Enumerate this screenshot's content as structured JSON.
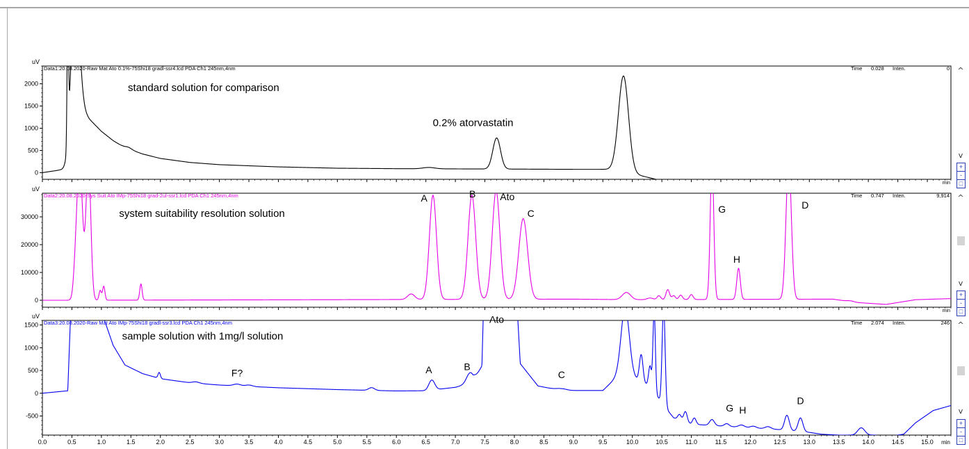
{
  "chart_data": [
    {
      "type": "line",
      "panel": 1,
      "header": "Data1:20.08.2020-Raw Mat Ato 0.1%-75Shi18 gradl-ssr4.lcd PDA Ch1 245nm,4nm",
      "ylabel": "uV",
      "color": "#000000",
      "ylim": [
        -150,
        2400
      ],
      "xlim": [
        0,
        15.4
      ],
      "yticks": [
        0,
        500,
        1000,
        1500,
        2000
      ],
      "ytick_labels": [
        "0",
        "500",
        "1000",
        "1500",
        "2000"
      ],
      "info": {
        "time_label": "Time",
        "time_value": "0.028",
        "inten_label": "Inten.",
        "inten_value": "0"
      },
      "annotations": [
        {
          "text": "standard solution for comparison",
          "x": 1.45,
          "y": 1840
        },
        {
          "text": "0.2% atorvastatin",
          "x": 7.3,
          "y": 1050
        }
      ],
      "baseline": {
        "points": [
          [
            0,
            0
          ],
          [
            0.3,
            60
          ],
          [
            0.42,
            60
          ],
          [
            0.6,
            1550
          ],
          [
            0.8,
            1200
          ],
          [
            1.0,
            930
          ],
          [
            1.2,
            720
          ],
          [
            1.4,
            560
          ],
          [
            1.7,
            420
          ],
          [
            2.0,
            320
          ],
          [
            2.5,
            230
          ],
          [
            3.0,
            180
          ],
          [
            4.0,
            130
          ],
          [
            5.0,
            100
          ],
          [
            6.0,
            90
          ],
          [
            7.0,
            85
          ],
          [
            8.0,
            80
          ],
          [
            9.0,
            75
          ],
          [
            9.7,
            75
          ],
          [
            10.4,
            -150
          ]
        ]
      },
      "peaks": [
        {
          "x": 0.43,
          "h": 3000,
          "w": 0.012
        },
        {
          "x": 0.55,
          "h": 3000,
          "w": 0.07
        },
        {
          "x": 1.45,
          "h": 40,
          "w": 0.06
        },
        {
          "x": 6.55,
          "h": 30,
          "w": 0.1
        },
        {
          "x": 7.7,
          "h": 700,
          "w": 0.065
        },
        {
          "x": 9.85,
          "h": 2150,
          "w": 0.085
        }
      ]
    },
    {
      "type": "line",
      "panel": 2,
      "header": "Data2:20.08.2020-Sys Suit Ato IMp-75Shi18 grad-2ul-ssr1.lcd PDA Ch1 245nm,4nm",
      "ylabel": "uV",
      "color": "#e600e6",
      "ylim": [
        -2500,
        38500
      ],
      "xlim": [
        0,
        15.4
      ],
      "yticks": [
        0,
        10000,
        20000,
        30000
      ],
      "ytick_labels": [
        "0",
        "10000",
        "20000",
        "30000"
      ],
      "info": {
        "time_label": "Time",
        "time_value": "0.747",
        "inten_label": "Inten.",
        "inten_value": "9,914"
      },
      "annotations": [
        {
          "text": "system suitability resolution solution",
          "x": 1.3,
          "y": 30000
        },
        {
          "text": "A",
          "x": 6.47,
          "y": 35500
        },
        {
          "text": "B",
          "x": 7.29,
          "y": 37000
        },
        {
          "text": "Ato",
          "x": 7.88,
          "y": 36000
        },
        {
          "text": "C",
          "x": 8.28,
          "y": 30000
        },
        {
          "text": "G",
          "x": 11.52,
          "y": 31500
        },
        {
          "text": "H",
          "x": 11.77,
          "y": 13500
        },
        {
          "text": "D",
          "x": 12.93,
          "y": 33000
        }
      ],
      "baseline": {
        "points": [
          [
            0,
            0
          ],
          [
            0.45,
            0
          ],
          [
            9.0,
            400
          ],
          [
            10.0,
            200
          ],
          [
            13.4,
            400
          ],
          [
            13.8,
            -800
          ],
          [
            14.3,
            -1500
          ],
          [
            14.8,
            200
          ],
          [
            15.4,
            600
          ]
        ]
      },
      "peaks": [
        {
          "x": 0.55,
          "h": 4000,
          "w": 0.03
        },
        {
          "x": 0.63,
          "h": 50000,
          "w": 0.05
        },
        {
          "x": 0.78,
          "h": 50000,
          "w": 0.04
        },
        {
          "x": 0.98,
          "h": 3500,
          "w": 0.02
        },
        {
          "x": 1.04,
          "h": 5000,
          "w": 0.02
        },
        {
          "x": 1.67,
          "h": 5800,
          "w": 0.02
        },
        {
          "x": 6.25,
          "h": 2000,
          "w": 0.06
        },
        {
          "x": 6.62,
          "h": 37500,
          "w": 0.06
        },
        {
          "x": 7.28,
          "h": 37500,
          "w": 0.065
        },
        {
          "x": 7.69,
          "h": 39000,
          "w": 0.065
        },
        {
          "x": 8.15,
          "h": 29000,
          "w": 0.075
        },
        {
          "x": 9.9,
          "h": 2600,
          "w": 0.07
        },
        {
          "x": 10.3,
          "h": 600,
          "w": 0.05
        },
        {
          "x": 10.45,
          "h": 1400,
          "w": 0.03
        },
        {
          "x": 10.6,
          "h": 3600,
          "w": 0.03
        },
        {
          "x": 10.7,
          "h": 1400,
          "w": 0.03
        },
        {
          "x": 10.82,
          "h": 1600,
          "w": 0.03
        },
        {
          "x": 11.0,
          "h": 1800,
          "w": 0.03
        },
        {
          "x": 11.35,
          "h": 50000,
          "w": 0.03
        },
        {
          "x": 11.8,
          "h": 11200,
          "w": 0.03
        },
        {
          "x": 12.65,
          "h": 50000,
          "w": 0.045
        },
        {
          "x": 13.7,
          "h": 300,
          "w": 0.06
        }
      ]
    },
    {
      "type": "line",
      "panel": 3,
      "header": "Data3:20.08.2020-Raw Mat Ato IMp-75Shi18 gradl-ssr3.lcd PDA Ch1 245nm,4nm",
      "ylabel": "uV",
      "color": "#0000ee",
      "ylim": [
        -920,
        1600
      ],
      "xlim": [
        0,
        15.4
      ],
      "xlabel": "min",
      "yticks": [
        -500,
        0,
        500,
        1000,
        1500
      ],
      "ytick_labels": [
        "-500",
        "0",
        "500",
        "1000",
        "1500"
      ],
      "xticks": [
        0.0,
        0.5,
        1.0,
        1.5,
        2.0,
        2.5,
        3.0,
        3.5,
        4.0,
        4.5,
        5.0,
        5.5,
        6.0,
        6.5,
        7.0,
        7.5,
        8.0,
        8.5,
        9.0,
        9.5,
        10.0,
        10.5,
        11.0,
        11.5,
        12.0,
        12.5,
        13.0,
        13.5,
        14.0,
        14.5,
        15.0
      ],
      "xtick_labels": [
        "0.0",
        "0.5",
        "1.0",
        "1.5",
        "2.0",
        "2.5",
        "3.0",
        "3.5",
        "4.0",
        "4.5",
        "5.0",
        "5.5",
        "6.0",
        "6.5",
        "7.0",
        "7.5",
        "8.0",
        "8.5",
        "9.0",
        "9.5",
        "10.0",
        "10.5",
        "11.0",
        "11.5",
        "12.0",
        "12.5",
        "13.0",
        "13.5",
        "14.0",
        "14.5",
        "15.0"
      ],
      "info": {
        "time_label": "Time",
        "time_value": "2.074",
        "inten_label": "Inten.",
        "inten_value": "246"
      },
      "annotations": [
        {
          "text": "sample solution with 1mg/l solution",
          "x": 1.35,
          "y": 1180
        },
        {
          "text": "F?",
          "x": 3.3,
          "y": 370
        },
        {
          "text": "A",
          "x": 6.55,
          "y": 440
        },
        {
          "text": "B",
          "x": 7.2,
          "y": 510
        },
        {
          "text": "Ato",
          "x": 7.7,
          "y": 1550
        },
        {
          "text": "C",
          "x": 8.8,
          "y": 330
        },
        {
          "text": "G",
          "x": 11.65,
          "y": -400
        },
        {
          "text": "H",
          "x": 11.87,
          "y": -450
        },
        {
          "text": "D",
          "x": 12.85,
          "y": -240
        }
      ],
      "baseline": {
        "points": [
          [
            0,
            0
          ],
          [
            0.4,
            50
          ],
          [
            0.43,
            50
          ],
          [
            0.5,
            2500
          ],
          [
            1.0,
            1800
          ],
          [
            1.2,
            1050
          ],
          [
            1.4,
            620
          ],
          [
            1.7,
            430
          ],
          [
            2.0,
            320
          ],
          [
            2.5,
            230
          ],
          [
            3.0,
            180
          ],
          [
            4.0,
            120
          ],
          [
            5.0,
            80
          ],
          [
            6.0,
            50
          ],
          [
            6.5,
            55
          ],
          [
            7.0,
            130
          ],
          [
            7.3,
            240
          ],
          [
            7.45,
            600
          ],
          [
            7.5,
            3000
          ],
          [
            8.0,
            3000
          ],
          [
            8.1,
            650
          ],
          [
            8.4,
            160
          ],
          [
            8.8,
            60
          ],
          [
            9.5,
            60
          ],
          [
            9.85,
            500
          ],
          [
            10.0,
            350
          ],
          [
            10.3,
            150
          ],
          [
            10.55,
            -300
          ],
          [
            10.7,
            -540
          ],
          [
            11.0,
            -680
          ],
          [
            11.5,
            -720
          ],
          [
            12.0,
            -760
          ],
          [
            12.5,
            -800
          ],
          [
            13.0,
            -860
          ],
          [
            13.2,
            -900
          ],
          [
            13.5,
            -920
          ],
          [
            14.1,
            -920
          ],
          [
            14.35,
            -950
          ],
          [
            14.6,
            -900
          ],
          [
            14.8,
            -650
          ],
          [
            15.1,
            -380
          ],
          [
            15.4,
            -270
          ]
        ]
      },
      "peaks": [
        {
          "x": 1.98,
          "h": 130,
          "w": 0.02
        },
        {
          "x": 2.6,
          "h": 30,
          "w": 0.06
        },
        {
          "x": 3.3,
          "h": 40,
          "w": 0.06
        },
        {
          "x": 3.5,
          "h": 30,
          "w": 0.06
        },
        {
          "x": 5.58,
          "h": 60,
          "w": 0.05
        },
        {
          "x": 6.6,
          "h": 220,
          "w": 0.05
        },
        {
          "x": 7.25,
          "h": 230,
          "w": 0.06
        },
        {
          "x": 8.8,
          "h": 40,
          "w": 0.08
        },
        {
          "x": 9.88,
          "h": 1400,
          "w": 0.07
        },
        {
          "x": 10.15,
          "h": 600,
          "w": 0.03
        },
        {
          "x": 10.3,
          "h": 450,
          "w": 0.025
        },
        {
          "x": 10.37,
          "h": 1800,
          "w": 0.02
        },
        {
          "x": 10.53,
          "h": 2200,
          "w": 0.025
        },
        {
          "x": 10.8,
          "h": 120,
          "w": 0.03
        },
        {
          "x": 10.9,
          "h": 230,
          "w": 0.03
        },
        {
          "x": 11.05,
          "h": 140,
          "w": 0.03
        },
        {
          "x": 11.35,
          "h": 130,
          "w": 0.04
        },
        {
          "x": 11.6,
          "h": 60,
          "w": 0.04
        },
        {
          "x": 11.85,
          "h": 50,
          "w": 0.05
        },
        {
          "x": 12.05,
          "h": 40,
          "w": 0.05
        },
        {
          "x": 12.3,
          "h": 50,
          "w": 0.05
        },
        {
          "x": 12.62,
          "h": 330,
          "w": 0.04
        },
        {
          "x": 12.85,
          "h": 300,
          "w": 0.04
        },
        {
          "x": 13.88,
          "h": 160,
          "w": 0.06
        }
      ]
    }
  ],
  "controls": {
    "scroll_up": "^",
    "scroll_down": "v",
    "zoom_in": "+",
    "zoom_out": "-",
    "zoom_fit": "□",
    "xunit": "min"
  }
}
